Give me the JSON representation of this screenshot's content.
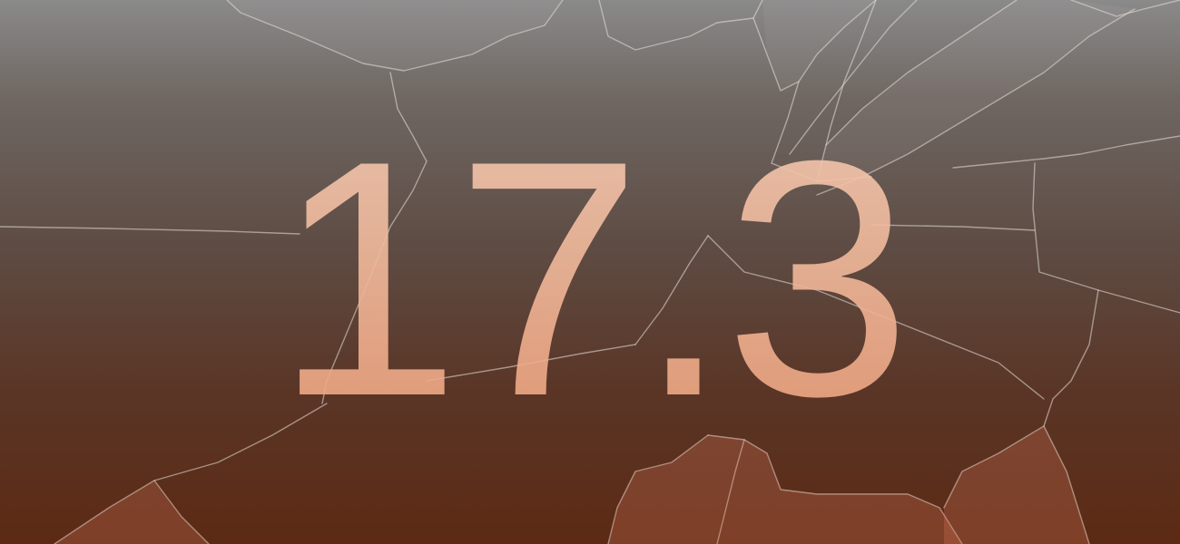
{
  "banner": {
    "version": "17.3"
  }
}
